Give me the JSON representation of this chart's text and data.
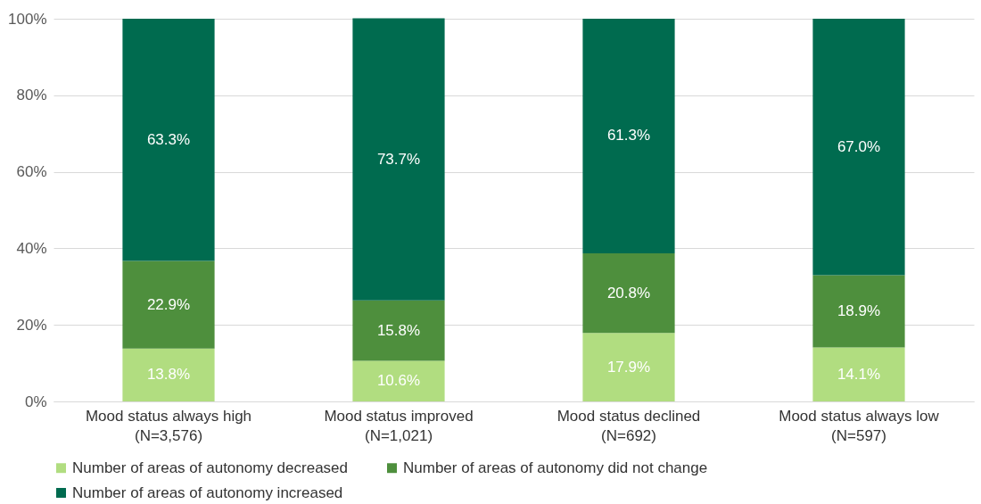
{
  "chart_data": {
    "type": "bar",
    "stacked": true,
    "grid": "y",
    "legend": "bottom",
    "categories": [
      "Mood status always high\n(N=3,576)",
      "Mood status improved\n(N=1,021)",
      "Mood status declined\n(N=692)",
      "Mood status always low\n(N=597)"
    ],
    "ylim": [
      0,
      100
    ],
    "yticks": [
      {
        "value": 0,
        "label": "0%"
      },
      {
        "value": 20,
        "label": "20%"
      },
      {
        "value": 40,
        "label": "40%"
      },
      {
        "value": 60,
        "label": "60%"
      },
      {
        "value": 80,
        "label": "80%"
      },
      {
        "value": 100,
        "label": "100%"
      }
    ],
    "series": [
      {
        "name": "Number of areas of autonomy decreased",
        "color": "#b1dd80",
        "values": [
          13.8,
          10.6,
          17.9,
          14.1
        ],
        "value_labels": [
          "13.8%",
          "10.6%",
          "17.9%",
          "14.1%"
        ]
      },
      {
        "name": "Number of areas of autonomy did not change",
        "color": "#4e8f3d",
        "values": [
          22.9,
          15.8,
          20.8,
          18.9
        ],
        "value_labels": [
          "22.9%",
          "15.8%",
          "20.8%",
          "18.9%"
        ]
      },
      {
        "name": "Number of areas of autonomy increased",
        "color": "#006b4f",
        "values": [
          63.3,
          73.7,
          61.3,
          67.0
        ],
        "value_labels": [
          "63.3%",
          "73.7%",
          "61.3%",
          "67.0%"
        ]
      }
    ]
  }
}
